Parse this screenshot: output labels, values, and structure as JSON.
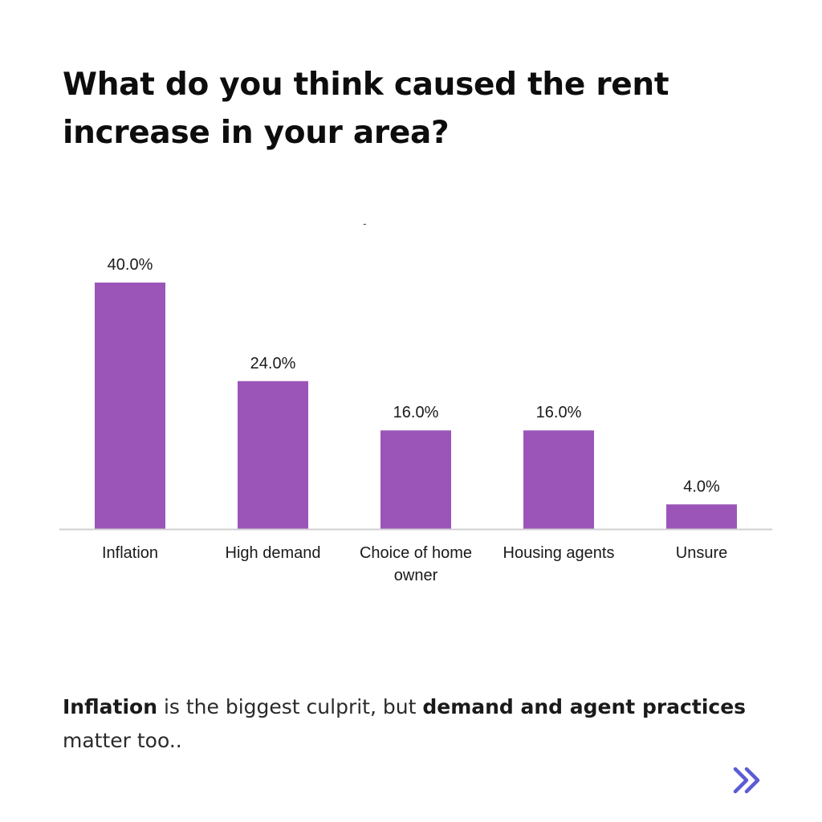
{
  "title": "What do you think caused the rent increase in your area?",
  "chart_subtitle": "-",
  "caption": {
    "part1_bold": "Inflation",
    "part2": " is the biggest culprit, but ",
    "part3_bold": "demand and agent practices",
    "part4": " matter too.."
  },
  "next_icon": "double-chevron-right-icon",
  "colors": {
    "bar": "#9b55b8",
    "axis": "#d0d0d0",
    "next_icon": "#5b5bd6",
    "label_text": "#1a1a1a"
  },
  "chart_data": {
    "type": "bar",
    "categories": [
      [
        "Inflation"
      ],
      [
        "High demand"
      ],
      [
        "Choice of home",
        "owner"
      ],
      [
        "Housing agents"
      ],
      [
        "Unsure"
      ]
    ],
    "values": [
      40.0,
      24.0,
      16.0,
      16.0,
      4.0
    ],
    "data_labels": [
      "40.0%",
      "24.0%",
      "16.0%",
      "16.0%",
      "4.0%"
    ],
    "ylim": [
      0,
      40
    ],
    "grid": false,
    "legend": "none"
  }
}
